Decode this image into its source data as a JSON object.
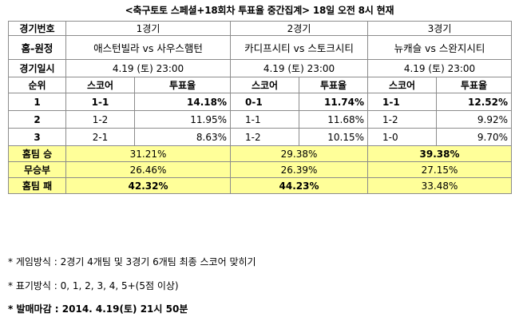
{
  "title": "<축구토토 스페셜+18회차 투표율 중간집계> 18일 오전 8시 현재",
  "labels": {
    "match_no": "경기번호",
    "home_away": "홈-원정",
    "match_date": "경기일시",
    "rank": "순위",
    "score": "스코어",
    "vote": "투표율"
  },
  "matches": [
    {
      "name": "1경기",
      "teams": "애스턴빌라 vs 사우스햄턴",
      "date": "4.19 (토) 23:00"
    },
    {
      "name": "2경기",
      "teams": "카디프시티 vs 스토크시티",
      "date": "4.19 (토) 23:00"
    },
    {
      "name": "3경기",
      "teams": "뉴캐슬 vs 스완지시티",
      "date": "4.19 (토) 23:00"
    }
  ],
  "ranks": [
    {
      "rank": "1",
      "cells": [
        {
          "score": "1-1",
          "rate": "14.18%"
        },
        {
          "score": "0-1",
          "rate": "11.74%"
        },
        {
          "score": "1-1",
          "rate": "12.52%"
        }
      ]
    },
    {
      "rank": "2",
      "cells": [
        {
          "score": "1-2",
          "rate": "11.95%"
        },
        {
          "score": "1-1",
          "rate": "11.68%"
        },
        {
          "score": "1-2",
          "rate": "9.92%"
        }
      ]
    },
    {
      "rank": "3",
      "cells": [
        {
          "score": "2-1",
          "rate": "8.63%"
        },
        {
          "score": "1-2",
          "rate": "10.15%"
        },
        {
          "score": "1-0",
          "rate": "9.70%"
        }
      ]
    }
  ],
  "results": [
    {
      "label": "홈팀 승",
      "values": [
        "31.21%",
        "29.38%",
        "39.38%"
      ],
      "bold": [
        false,
        false,
        true
      ]
    },
    {
      "label": "무승부",
      "values": [
        "26.46%",
        "26.39%",
        "27.15%"
      ],
      "bold": [
        false,
        false,
        false
      ]
    },
    {
      "label": "홈팀 패",
      "values": [
        "42.32%",
        "44.23%",
        "33.48%"
      ],
      "bold": [
        true,
        true,
        false
      ]
    }
  ],
  "notes": [
    "* 게임방식 : 2경기 4개팀 및 3경기 6개팀 최종 스코어 맞히기",
    "* 표기방식 : 0, 1, 2, 3, 4, 5+(5점 이상)",
    "* 발매마감 : 2014. 4.19(토) 21시 50분"
  ],
  "colors": {
    "highlight": "#ffff99",
    "border": "#8c8c8c"
  }
}
